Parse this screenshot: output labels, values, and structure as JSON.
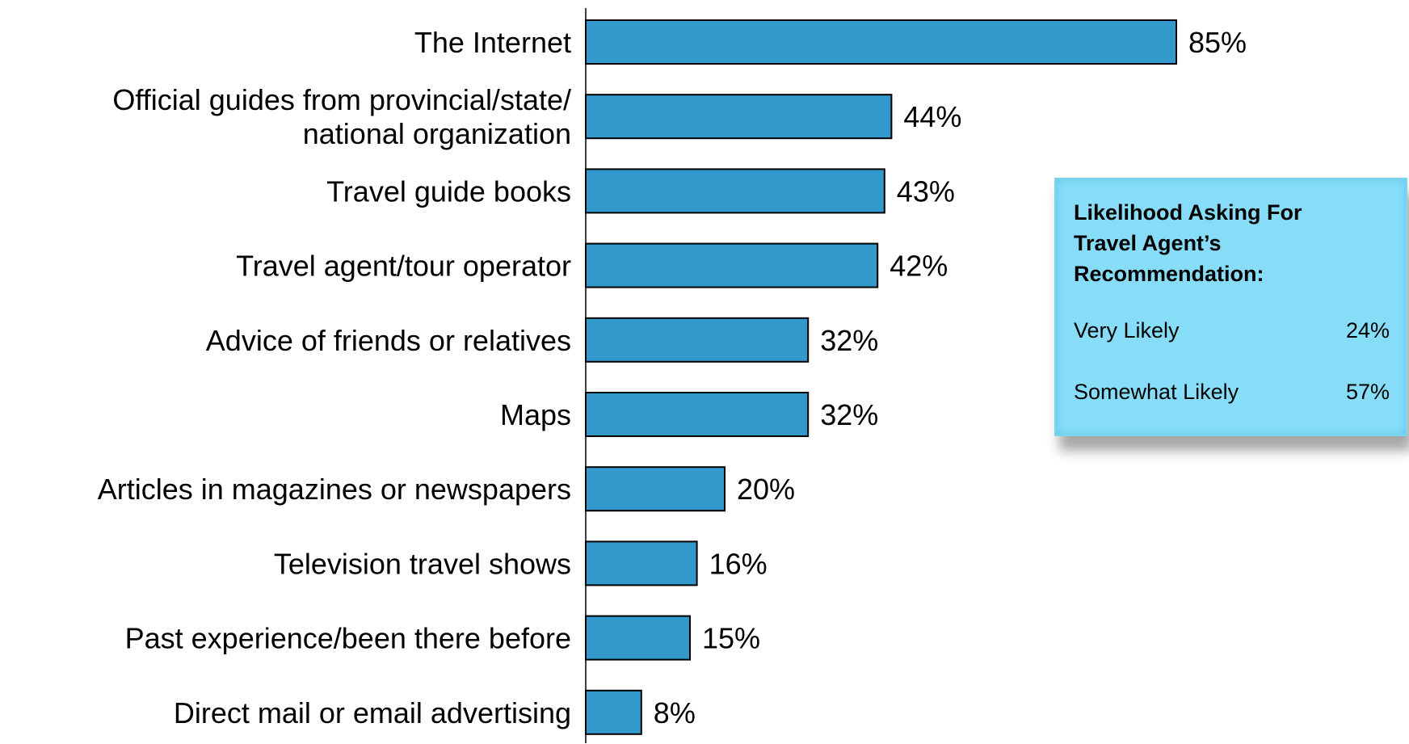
{
  "chart_data": {
    "type": "bar",
    "orientation": "horizontal",
    "categories": [
      [
        "The Internet"
      ],
      [
        "Official guides from provincial/state/",
        "national organization"
      ],
      [
        "Travel guide books"
      ],
      [
        "Travel agent/tour operator"
      ],
      [
        "Advice of friends or relatives"
      ],
      [
        "Maps"
      ],
      [
        "Articles in magazines or newspapers"
      ],
      [
        "Television travel shows"
      ],
      [
        "Past experience/been there before"
      ],
      [
        "Direct mail or email advertising"
      ]
    ],
    "values": [
      85,
      44,
      43,
      42,
      32,
      32,
      20,
      16,
      15,
      8
    ],
    "value_labels": [
      "85%",
      "44%",
      "43%",
      "42%",
      "32%",
      "32%",
      "20%",
      "16%",
      "15%",
      "8%"
    ],
    "xlim": [
      0,
      100
    ],
    "grid": false,
    "bar_color": "#3399CC"
  },
  "callout": {
    "title": "Likelihood Asking For Travel Agent’s Recommendation:",
    "rows": [
      {
        "label": "Very Likely",
        "value": "24%"
      },
      {
        "label": "Somewhat Likely",
        "value": "57%"
      }
    ],
    "background": "#87DDF7"
  }
}
